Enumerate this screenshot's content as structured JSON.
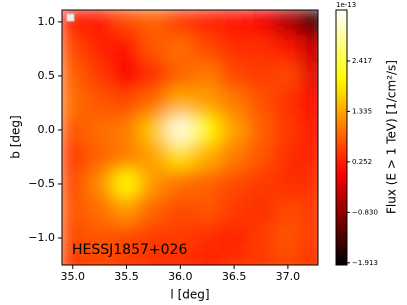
{
  "chart_data": {
    "type": "heatmap",
    "xlabel": "l [deg]",
    "ylabel": "b [deg]",
    "colorbar_label": "Flux (E > 1 TeV) [1/cm²/s]",
    "colorbar_offset": "1e-13",
    "annotation": "HESSJ1857+026",
    "annotation_color": "#f5d800",
    "colormap": "hot",
    "x": [
      35.0,
      35.25,
      35.5,
      35.75,
      36.0,
      36.25,
      36.5,
      36.75,
      37.0,
      37.25
    ],
    "y": [
      1.0,
      0.75,
      0.5,
      0.25,
      0.0,
      -0.25,
      -0.5,
      -0.75,
      -1.0,
      -1.25
    ],
    "values": [
      [
        0.3,
        0.2,
        0.6,
        0.8,
        0.5,
        0.3,
        0.2,
        0.0,
        -0.6,
        -1.6
      ],
      [
        0.6,
        0.3,
        0.1,
        0.7,
        0.9,
        0.6,
        0.4,
        0.4,
        0.2,
        -0.4
      ],
      [
        0.8,
        0.5,
        0.0,
        0.4,
        0.8,
        1.0,
        0.6,
        0.5,
        0.6,
        -0.2
      ],
      [
        0.9,
        0.7,
        0.6,
        0.9,
        1.4,
        1.3,
        1.0,
        0.7,
        0.4,
        0.1
      ],
      [
        0.7,
        0.9,
        1.0,
        1.6,
        3.3,
        2.0,
        1.3,
        0.8,
        0.5,
        0.2
      ],
      [
        0.5,
        0.8,
        1.0,
        1.3,
        1.8,
        1.4,
        1.0,
        0.7,
        0.4,
        0.3
      ],
      [
        0.6,
        1.1,
        2.0,
        1.2,
        0.9,
        0.8,
        0.6,
        0.5,
        0.4,
        0.4
      ],
      [
        0.7,
        0.9,
        1.2,
        0.8,
        0.6,
        0.7,
        0.5,
        0.4,
        0.6,
        0.5
      ],
      [
        0.6,
        0.7,
        0.6,
        0.5,
        0.5,
        0.4,
        0.3,
        0.5,
        0.7,
        0.5
      ],
      [
        0.5,
        0.6,
        0.5,
        0.4,
        0.4,
        0.3,
        0.4,
        0.5,
        0.6,
        0.4
      ]
    ],
    "xlim": [
      34.9,
      37.28
    ],
    "ylim": [
      -1.25,
      1.11
    ],
    "zlim": [
      -1.96,
      3.51
    ],
    "xticks": [
      {
        "value": 35,
        "label": "35.0"
      },
      35.5,
      {
        "value": 36,
        "label": "36.0"
      },
      36.5,
      {
        "value": 37,
        "label": "37.0"
      }
    ],
    "yticks": [
      {
        "value": 1,
        "label": "1.0"
      },
      0.5,
      {
        "value": 0,
        "label": "0.0"
      },
      {
        "value": -0.5,
        "label": "−0.5"
      },
      {
        "value": -1,
        "label": "−1.0"
      }
    ],
    "zticks": [
      {
        "value": -1.913,
        "label": "−1.913"
      },
      {
        "value": -0.83,
        "label": "−0.830"
      },
      0.252,
      1.335,
      2.417
    ]
  }
}
